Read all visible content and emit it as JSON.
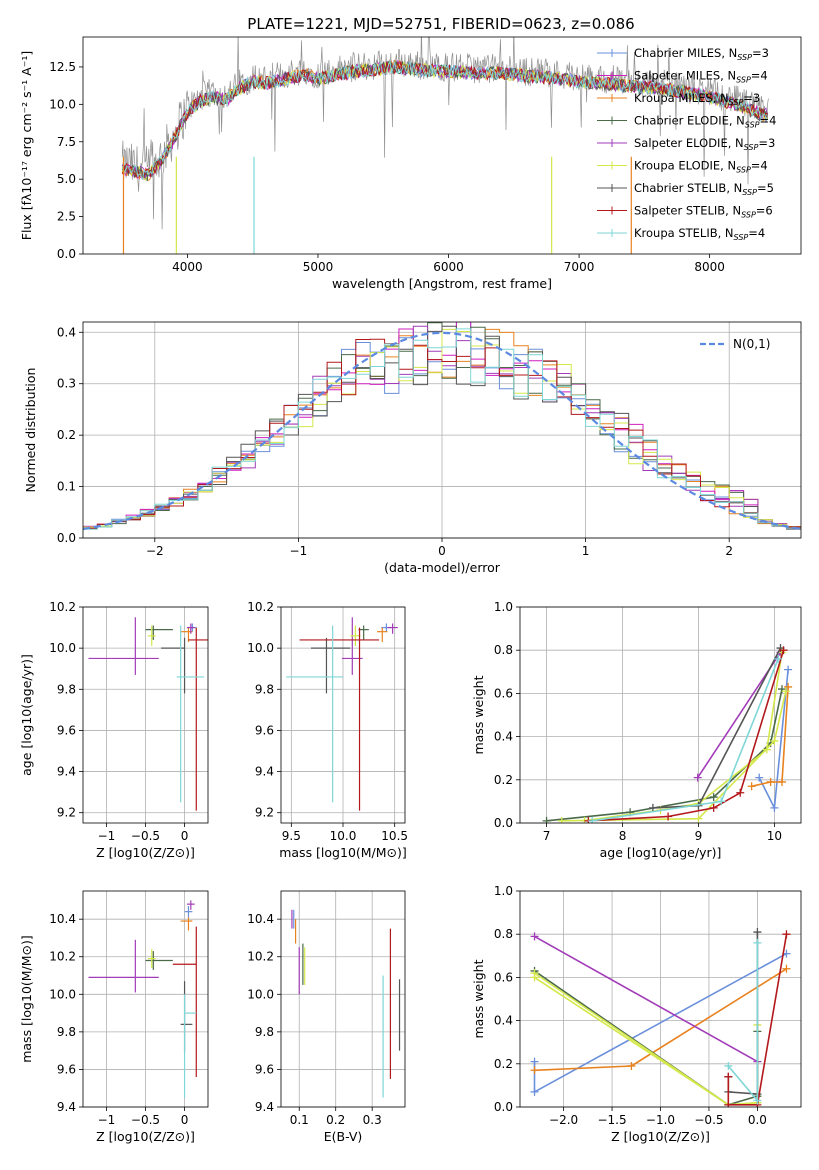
{
  "figure_title": "PLATE=1221, MJD=52751, FIBERID=0623, z=0.086",
  "colors": {
    "c0": "#6a8fdc",
    "c1": "#e8821e",
    "c2": "#a23cb8",
    "c3": "#8f8f8f",
    "c4": "#4a6a4a",
    "c5": "#cf1fbf",
    "c6": "#d4e84a",
    "c7": "#555555",
    "c8": "#b3181c",
    "c9": "#7fd6d6",
    "gauss": "#5b8ae0"
  },
  "chart_data": [
    {
      "id": "spectrum",
      "type": "line",
      "title": "PLATE=1221, MJD=52751, FIBERID=0623, z=0.086",
      "xlabel": "wavelength [Angstrom, rest frame]",
      "ylabel": "Flux [fλ10⁻¹⁷ erg cm⁻² s⁻¹ A⁻¹]",
      "xlim": [
        3200,
        8700
      ],
      "ylim": [
        0,
        14.5
      ],
      "xticks": [
        4000,
        5000,
        6000,
        7000,
        8000
      ],
      "xtick_labels": [
        "4000",
        "5000",
        "6000",
        "7000",
        "8000"
      ],
      "yticks": [
        0,
        2.5,
        5.0,
        7.5,
        10.0,
        12.5
      ],
      "ytick_labels": [
        "0.0",
        "2.5",
        "5.0",
        "7.5",
        "10.0",
        "12.5"
      ],
      "grid": false,
      "legend_position": "right",
      "legend": [
        "Chabrier MILES, N_SSP=3",
        "Salpeter MILES, N_SSP=4",
        "Kroupa MILES, N_SSP=3",
        "Chabrier ELODIE, N_SSP=4",
        "Salpeter ELODIE, N_SSP=3",
        "Kroupa ELODIE, N_SSP=4",
        "Chabrier STELIB, N_SSP=5",
        "Salpeter STELIB, N_SSP=6",
        "Kroupa STELIB, N_SSP=4"
      ],
      "legend_labels": [
        {
          "pre": "Chabrier MILES, N",
          "sub": "SSP",
          "post": "=3"
        },
        {
          "pre": "Salpeter MILES, N",
          "sub": "SSP",
          "post": "=4"
        },
        {
          "pre": "Kroupa MILES, N",
          "sub": "SSP",
          "post": "=3"
        },
        {
          "pre": "Chabrier ELODIE, N",
          "sub": "SSP",
          "post": "=4"
        },
        {
          "pre": "Salpeter ELODIE, N",
          "sub": "SSP",
          "post": "=3"
        },
        {
          "pre": "Kroupa ELODIE, N",
          "sub": "SSP",
          "post": "=4"
        },
        {
          "pre": "Chabrier STELIB, N",
          "sub": "SSP",
          "post": "=5"
        },
        {
          "pre": "Salpeter STELIB, N",
          "sub": "SSP",
          "post": "=6"
        },
        {
          "pre": "Kroupa STELIB, N",
          "sub": "SSP",
          "post": "=4"
        }
      ],
      "series": [
        {
          "wave": [
            3500,
            3600,
            3700,
            3800,
            3900,
            4000,
            4100,
            4200,
            4300,
            4400,
            4500,
            4600,
            4700,
            4800,
            4900,
            5000,
            5200,
            5400,
            5600,
            5800,
            6000,
            6200,
            6400,
            6600,
            6800,
            7000,
            7200,
            7400,
            7600,
            7800,
            8000,
            8200,
            8400
          ],
          "flux": [
            6.0,
            5.8,
            5.6,
            6.5,
            8.0,
            9.8,
            10.5,
            10.8,
            10.6,
            11.4,
            11.8,
            11.7,
            11.9,
            12.1,
            12.3,
            12.0,
            12.4,
            12.6,
            12.8,
            12.6,
            12.5,
            12.4,
            12.4,
            12.2,
            12.1,
            11.8,
            11.7,
            11.5,
            11.4,
            11.1,
            10.8,
            10.3,
            9.6
          ]
        }
      ]
    },
    {
      "id": "residuals",
      "type": "histogram",
      "xlabel": "(data-model)/error",
      "ylabel": "Normed distribution",
      "xlim": [
        -2.5,
        2.5
      ],
      "ylim": [
        0,
        0.42
      ],
      "xticks": [
        -2,
        -1,
        0,
        1,
        2
      ],
      "xtick_labels": [
        "−2",
        "−1",
        "0",
        "1",
        "2"
      ],
      "yticks": [
        0,
        0.1,
        0.2,
        0.3,
        0.4
      ],
      "ytick_labels": [
        "0.0",
        "0.1",
        "0.2",
        "0.3",
        "0.4"
      ],
      "grid": true,
      "legend_position": "top-right",
      "legend": [
        "N(0,1)"
      ],
      "bin_width": 0.1,
      "bin_start": -2.5
    },
    {
      "id": "age-vs-Z",
      "type": "scatter",
      "xlabel": "Z [log10(Z/Z⊙)]",
      "ylabel": "age [log10(age/yr)]",
      "xlim": [
        -1.3,
        0.3
      ],
      "ylim": [
        9.15,
        10.2
      ],
      "xticks": [
        -1,
        -0.5,
        0
      ],
      "xtick_labels": [
        "−1",
        "−0.5",
        "0"
      ],
      "yticks": [
        9.2,
        9.4,
        9.6,
        9.8,
        10.0,
        10.2
      ],
      "ytick_labels": [
        "9.2",
        "9.4",
        "9.6",
        "9.8",
        "10.0",
        "10.2"
      ],
      "grid": true,
      "points": [
        {
          "x": 0.1,
          "y": 10.1,
          "xerr": [
            0.05,
            0.05
          ],
          "yerr": [
            0.02,
            0.02
          ]
        },
        {
          "x": 0.05,
          "y": 10.08,
          "xerr": [
            0.1,
            0.05
          ],
          "yerr": [
            0.05,
            0.02
          ]
        },
        {
          "x": 0.08,
          "y": 10.1,
          "xerr": [
            0.05,
            0.05
          ],
          "yerr": [
            0.03,
            0.02
          ]
        },
        {
          "x": -0.4,
          "y": 10.09,
          "xerr": [
            0.1,
            0.25
          ],
          "yerr": [
            0.05,
            0.02
          ]
        },
        {
          "x": -0.63,
          "y": 9.95,
          "xerr": [
            0.6,
            0.3
          ],
          "yerr": [
            0.08,
            0.2
          ]
        },
        {
          "x": -0.42,
          "y": 10.06,
          "xerr": [
            0.05,
            0.05
          ],
          "yerr": [
            0.05,
            0.05
          ]
        },
        {
          "x": 0.0,
          "y": 10.0,
          "xerr": [
            0.3,
            0.0
          ],
          "yerr": [
            0.22,
            0.05
          ]
        },
        {
          "x": 0.15,
          "y": 10.04,
          "xerr": [
            0.1,
            0.15
          ],
          "yerr": [
            0.83,
            0.06
          ]
        },
        {
          "x": -0.05,
          "y": 9.86,
          "xerr": [
            0.05,
            0.3
          ],
          "yerr": [
            0.61,
            0.25
          ]
        }
      ]
    },
    {
      "id": "age-vs-mass",
      "type": "scatter",
      "xlabel": "mass [log10(M/M⊙)]",
      "xlim": [
        9.4,
        10.6
      ],
      "ylim": [
        9.15,
        10.2
      ],
      "xticks": [
        9.5,
        10.0,
        10.5
      ],
      "xtick_labels": [
        "9.5",
        "10.0",
        "10.5"
      ],
      "yticks": [
        9.2,
        9.4,
        9.6,
        9.8,
        10.0,
        10.2
      ],
      "ytick_labels": [
        "9.2",
        "9.4",
        "9.6",
        "9.8",
        "10.0",
        "10.2"
      ],
      "grid": true,
      "points": [
        {
          "x": 10.42,
          "y": 10.1,
          "xerr": [
            0.05,
            0.05
          ],
          "yerr": [
            0.02,
            0.02
          ]
        },
        {
          "x": 10.38,
          "y": 10.08,
          "xerr": [
            0.05,
            0.05
          ],
          "yerr": [
            0.05,
            0.02
          ]
        },
        {
          "x": 10.48,
          "y": 10.1,
          "xerr": [
            0.05,
            0.05
          ],
          "yerr": [
            0.03,
            0.02
          ]
        },
        {
          "x": 10.2,
          "y": 10.09,
          "xerr": [
            0.05,
            0.05
          ],
          "yerr": [
            0.05,
            0.02
          ]
        },
        {
          "x": 10.09,
          "y": 9.95,
          "xerr": [
            0.1,
            0.1
          ],
          "yerr": [
            0.08,
            0.2
          ]
        },
        {
          "x": 10.12,
          "y": 10.06,
          "xerr": [
            0.05,
            0.05
          ],
          "yerr": [
            0.05,
            0.05
          ]
        },
        {
          "x": 9.84,
          "y": 10.0,
          "xerr": [
            0.15,
            0.23
          ],
          "yerr": [
            0.22,
            0.05
          ]
        },
        {
          "x": 10.16,
          "y": 10.04,
          "xerr": [
            0.58,
            0.19
          ],
          "yerr": [
            0.83,
            0.06
          ]
        },
        {
          "x": 9.9,
          "y": 9.86,
          "xerr": [
            0.45,
            0.1
          ],
          "yerr": [
            0.61,
            0.25
          ]
        }
      ]
    },
    {
      "id": "weight-vs-age",
      "type": "line",
      "xlabel": "age [log10(age/yr)]",
      "ylabel": "mass weight",
      "xlim": [
        6.65,
        10.35
      ],
      "ylim": [
        0,
        1.0
      ],
      "xticks": [
        7,
        8,
        9,
        10
      ],
      "xtick_labels": [
        "7",
        "8",
        "9",
        "10"
      ],
      "yticks": [
        0,
        0.2,
        0.4,
        0.6,
        0.8,
        1.0
      ],
      "ytick_labels": [
        "0.0",
        "0.2",
        "0.4",
        "0.6",
        "0.8",
        "1.0"
      ],
      "grid": true,
      "series": [
        {
          "x": [
            9.8,
            10.0,
            10.18
          ],
          "y": [
            0.21,
            0.07,
            0.71
          ]
        },
        {
          "x": [
            9.7,
            9.95,
            10.1,
            10.18
          ],
          "y": [
            0.17,
            0.19,
            0.19,
            0.63
          ]
        },
        {
          "x": [
            8.99,
            10.08
          ],
          "y": [
            0.21,
            0.79
          ]
        },
        {
          "x": [
            7.0,
            8.1,
            9.2,
            9.95,
            10.1
          ],
          "y": [
            0.01,
            0.05,
            0.12,
            0.37,
            0.62
          ]
        },
        {
          "x": [
            7.5,
            8.5,
            9.0,
            9.9,
            10.1
          ],
          "y": [
            0.01,
            0.06,
            0.09,
            0.34,
            0.79
          ]
        },
        {
          "x": [
            7.2,
            9.0,
            10.0,
            10.15
          ],
          "y": [
            0.01,
            0.02,
            0.38,
            0.61
          ]
        },
        {
          "x": [
            8.4,
            9.0,
            10.08
          ],
          "y": [
            0.07,
            0.08,
            0.81
          ]
        },
        {
          "x": [
            7.55,
            8.6,
            9.2,
            9.55,
            10.12
          ],
          "y": [
            0.01,
            0.03,
            0.07,
            0.14,
            0.8
          ]
        },
        {
          "x": [
            7.6,
            9.3,
            10.05
          ],
          "y": [
            0.01,
            0.1,
            0.76
          ]
        }
      ]
    },
    {
      "id": "mass-vs-Z",
      "type": "scatter",
      "xlabel": "Z [log10(Z/Z⊙)]",
      "ylabel": "mass [log10(M/M⊙)]",
      "xlim": [
        -1.3,
        0.3
      ],
      "ylim": [
        9.4,
        10.55
      ],
      "xticks": [
        -1,
        -0.5,
        0
      ],
      "xtick_labels": [
        "−1",
        "−0.5",
        "0"
      ],
      "yticks": [
        9.4,
        9.6,
        9.8,
        10.0,
        10.2,
        10.4
      ],
      "ytick_labels": [
        "9.4",
        "9.6",
        "9.8",
        "10.0",
        "10.2",
        "10.4"
      ],
      "grid": true,
      "points": [
        {
          "x": 0.05,
          "y": 10.44,
          "xerr": [
            0.05,
            0.05
          ],
          "yerr": [
            0.03,
            0.03
          ]
        },
        {
          "x": 0.05,
          "y": 10.39,
          "xerr": [
            0.1,
            0.05
          ],
          "yerr": [
            0.05,
            0.02
          ]
        },
        {
          "x": 0.08,
          "y": 10.48,
          "xerr": [
            0.05,
            0.05
          ],
          "yerr": [
            0.03,
            0.02
          ]
        },
        {
          "x": -0.4,
          "y": 10.18,
          "xerr": [
            0.1,
            0.25
          ],
          "yerr": [
            0.05,
            0.05
          ]
        },
        {
          "x": -0.63,
          "y": 10.09,
          "xerr": [
            0.6,
            0.3
          ],
          "yerr": [
            0.08,
            0.2
          ]
        },
        {
          "x": -0.42,
          "y": 10.19,
          "xerr": [
            0.05,
            0.05
          ],
          "yerr": [
            0.05,
            0.05
          ]
        },
        {
          "x": 0.0,
          "y": 9.84,
          "xerr": [
            0.05,
            0.1
          ],
          "yerr": [
            0.15,
            0.23
          ]
        },
        {
          "x": 0.15,
          "y": 10.16,
          "xerr": [
            0.3,
            0.0
          ],
          "yerr": [
            0.6,
            0.2
          ]
        },
        {
          "x": 0.0,
          "y": 9.9,
          "xerr": [
            0.0,
            0.15
          ],
          "yerr": [
            0.45,
            0.1
          ]
        }
      ]
    },
    {
      "id": "mass-vs-ebv",
      "type": "scatter",
      "xlabel": "E(B-V)",
      "xlim": [
        0.05,
        0.39
      ],
      "ylim": [
        9.4,
        10.55
      ],
      "xticks": [
        0.1,
        0.2,
        0.3
      ],
      "xtick_labels": [
        "0.1",
        "0.2",
        "0.3"
      ],
      "yticks": [
        9.4,
        9.6,
        9.8,
        10.0,
        10.2,
        10.4
      ],
      "ytick_labels": [
        "9.4",
        "9.6",
        "9.8",
        "10.0",
        "10.2",
        "10.4"
      ],
      "grid": true,
      "points": [
        {
          "x": 0.085,
          "y": 10.4,
          "xerr": [
            0,
            0
          ],
          "yerr": [
            0.05,
            0.05
          ]
        },
        {
          "x": 0.09,
          "y": 10.35,
          "xerr": [
            0,
            0
          ],
          "yerr": [
            0.08,
            0.05
          ]
        },
        {
          "x": 0.08,
          "y": 10.4,
          "xerr": [
            0,
            0
          ],
          "yerr": [
            0.05,
            0.05
          ]
        },
        {
          "x": 0.11,
          "y": 10.15,
          "xerr": [
            0,
            0
          ],
          "yerr": [
            0.1,
            0.12
          ]
        },
        {
          "x": 0.1,
          "y": 10.1,
          "xerr": [
            0,
            0
          ],
          "yerr": [
            0.1,
            0.15
          ]
        },
        {
          "x": 0.115,
          "y": 10.15,
          "xerr": [
            0,
            0
          ],
          "yerr": [
            0.1,
            0.1
          ]
        },
        {
          "x": 0.375,
          "y": 9.88,
          "xerr": [
            0,
            0
          ],
          "yerr": [
            0.18,
            0.2
          ]
        },
        {
          "x": 0.35,
          "y": 9.95,
          "xerr": [
            0,
            0
          ],
          "yerr": [
            0.4,
            0.4
          ]
        },
        {
          "x": 0.33,
          "y": 9.75,
          "xerr": [
            0,
            0
          ],
          "yerr": [
            0.3,
            0.35
          ]
        }
      ]
    },
    {
      "id": "weight-vs-Z",
      "type": "line",
      "xlabel": "Z [log10(Z/Z⊙)]",
      "ylabel": "mass weight",
      "xlim": [
        -2.45,
        0.45
      ],
      "ylim": [
        0,
        1.0
      ],
      "xticks": [
        -2.0,
        -1.5,
        -1.0,
        -0.5,
        0.0
      ],
      "xtick_labels": [
        "−2.0",
        "−1.5",
        "−1.0",
        "−0.5",
        "0.0"
      ],
      "yticks": [
        0,
        0.2,
        0.4,
        0.6,
        0.8,
        1.0
      ],
      "ytick_labels": [
        "0.0",
        "0.2",
        "0.4",
        "0.6",
        "0.8",
        "1.0"
      ],
      "grid": true,
      "series": [
        {
          "x": [
            -2.3,
            -2.3,
            0.3
          ],
          "y": [
            0.21,
            0.07,
            0.71
          ]
        },
        {
          "x": [
            -2.3,
            -1.3,
            0.3
          ],
          "y": [
            0.17,
            0.19,
            0.64
          ]
        },
        {
          "x": [
            -2.3,
            0.0
          ],
          "y": [
            0.79,
            0.21
          ]
        },
        {
          "x": [
            -2.3,
            -0.3,
            0.0,
            0.0
          ],
          "y": [
            0.63,
            0.01,
            0.05,
            0.35
          ]
        },
        {
          "x": [
            -2.3,
            -0.3,
            0.0
          ],
          "y": [
            0.62,
            0.01,
            0.02
          ]
        },
        {
          "x": [
            -2.3,
            -0.3,
            0.0,
            0.0
          ],
          "y": [
            0.6,
            0.01,
            0.02,
            0.38
          ]
        },
        {
          "x": [
            -0.3,
            -0.3,
            0.0,
            0.0
          ],
          "y": [
            0.14,
            0.07,
            0.06,
            0.81
          ]
        },
        {
          "x": [
            -0.3,
            -0.3,
            0.0,
            0.3
          ],
          "y": [
            0.14,
            0.01,
            0.01,
            0.8
          ]
        },
        {
          "x": [
            -0.3,
            0.0,
            0.0
          ],
          "y": [
            0.19,
            0.03,
            0.76
          ]
        }
      ]
    }
  ]
}
